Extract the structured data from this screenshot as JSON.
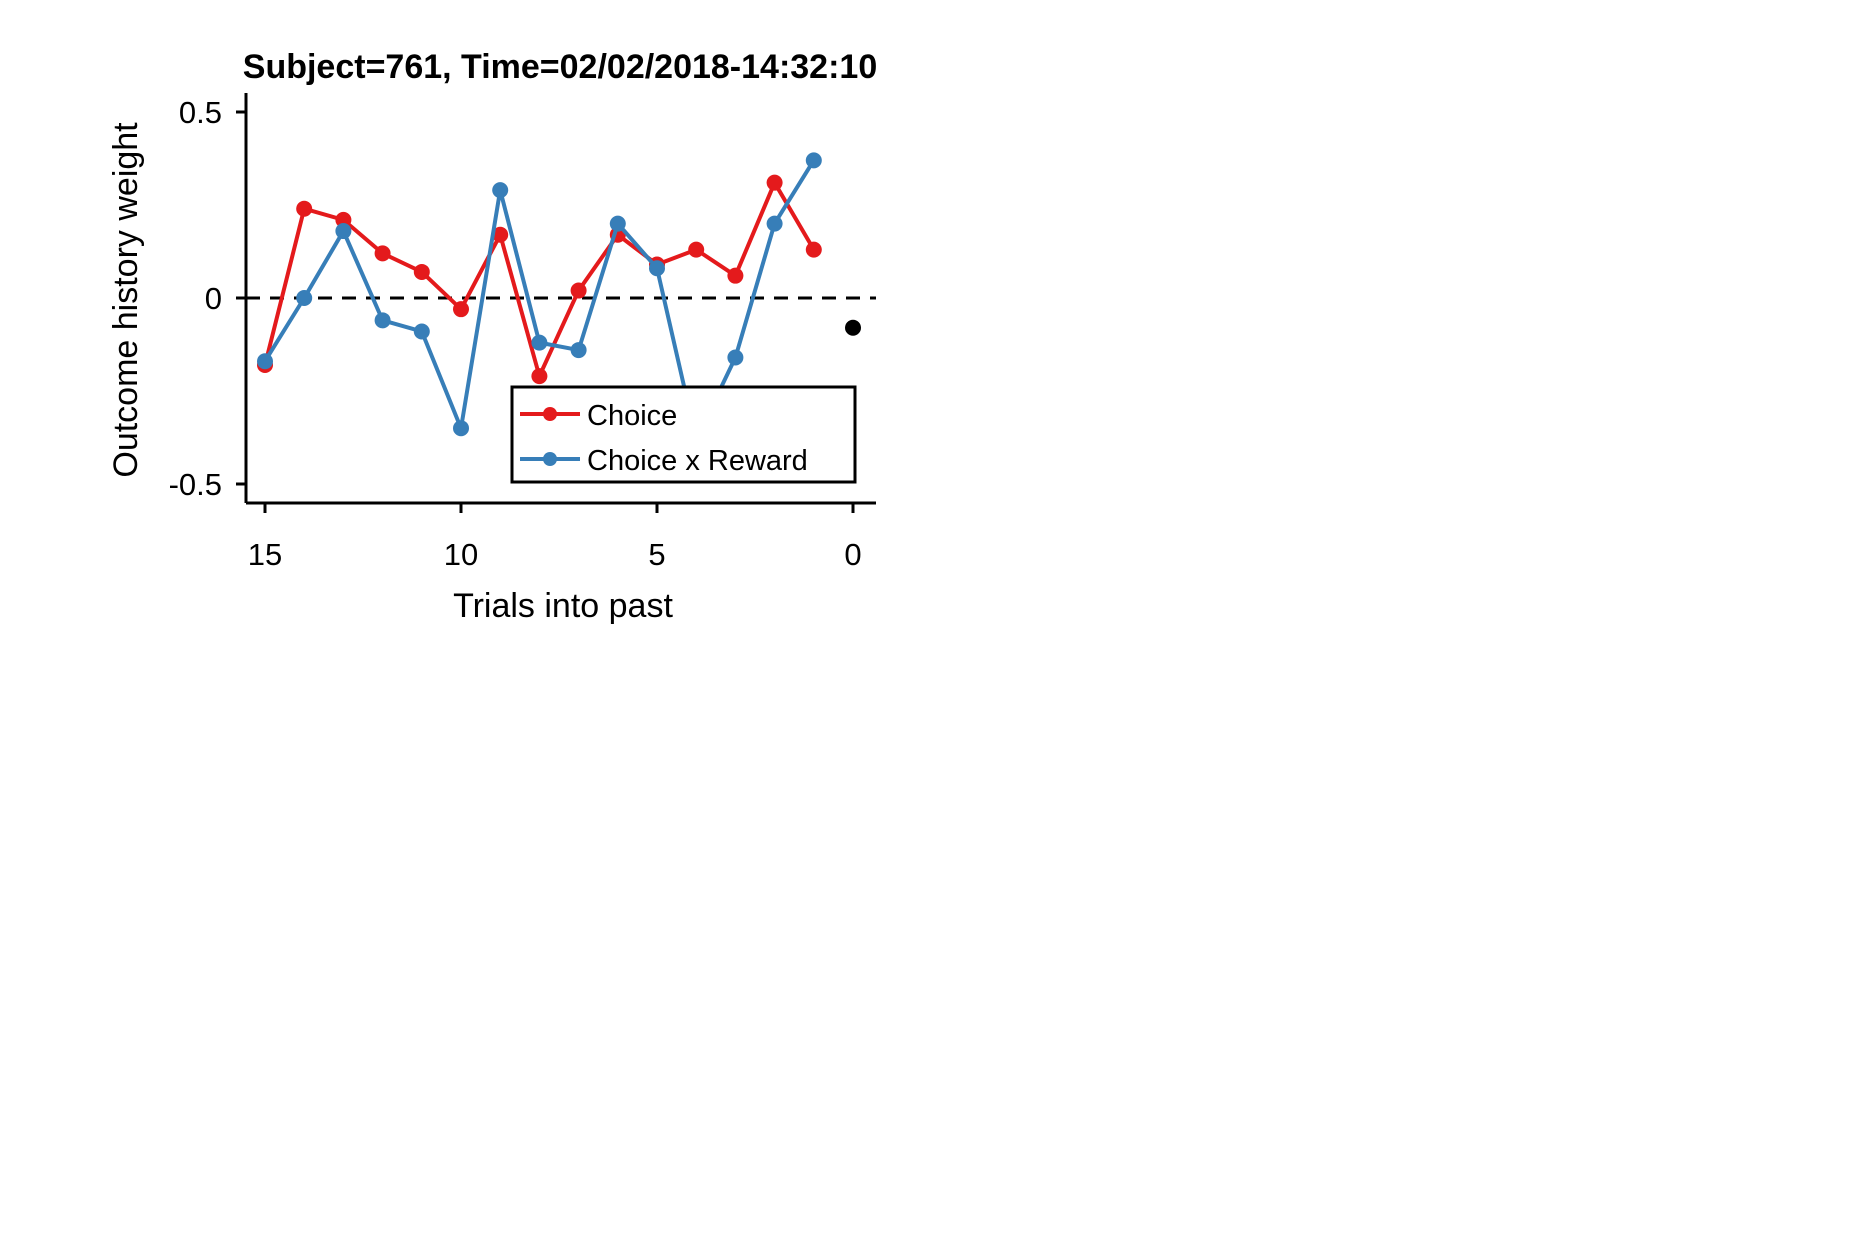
{
  "chart_data": {
    "type": "line",
    "title": "Subject=761, Time=02/02/2018-14:32:10",
    "xlabel": "Trials into past",
    "ylabel": "Outcome history weight",
    "xlim": [
      15.5,
      -0.5
    ],
    "ylim": [
      -0.55,
      0.55
    ],
    "x_reversed": true,
    "xticks": [
      15,
      10,
      5,
      0
    ],
    "xtick_labels": [
      "15",
      "10",
      "5",
      "0"
    ],
    "yticks": [
      0.5,
      0,
      -0.5
    ],
    "ytick_labels": [
      "0.5",
      "0",
      "-0.5"
    ],
    "grid": false,
    "reference_line": {
      "y": 0,
      "style": "dashed",
      "color": "#000000"
    },
    "legend": {
      "placement": "lower-right",
      "entries": [
        "Choice",
        "Choice x Reward"
      ]
    },
    "series": [
      {
        "name": "Choice",
        "color": "#e41a1c",
        "x": [
          15,
          14,
          13,
          12,
          11,
          10,
          9,
          8,
          7,
          6,
          5,
          4,
          3,
          2,
          1
        ],
        "y": [
          -0.18,
          0.24,
          0.21,
          0.12,
          0.07,
          -0.03,
          0.17,
          -0.21,
          0.02,
          0.17,
          0.09,
          0.13,
          0.06,
          0.31,
          0.13
        ]
      },
      {
        "name": "Choice x Reward",
        "color": "#377eb8",
        "x": [
          15,
          14,
          13,
          12,
          11,
          10,
          9,
          8,
          7,
          6,
          5,
          4,
          3,
          2,
          1
        ],
        "y": [
          -0.17,
          0.0,
          0.18,
          -0.06,
          -0.09,
          -0.35,
          0.29,
          -0.12,
          -0.14,
          0.2,
          0.08,
          -0.38,
          -0.16,
          0.2,
          0.37
        ]
      },
      {
        "name": "",
        "color": "#000000",
        "x": [
          0
        ],
        "y": [
          -0.08
        ]
      }
    ]
  }
}
